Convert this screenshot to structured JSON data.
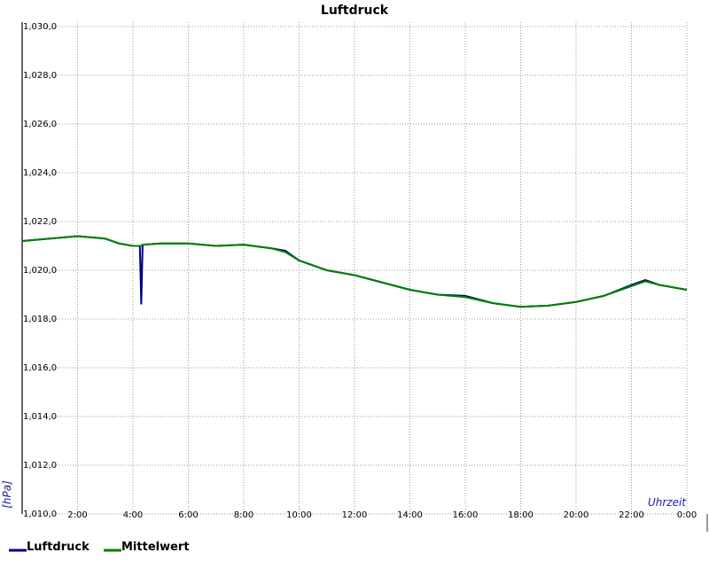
{
  "chart_data": {
    "type": "line",
    "title": "Luftdruck",
    "x_label": "Uhrzeit",
    "y_label": "[hPa]",
    "x": [
      0,
      1,
      2,
      3,
      3.5,
      4,
      4.25,
      4.3,
      4.35,
      5,
      6,
      7,
      8,
      9,
      9.5,
      10,
      11,
      12,
      13,
      14,
      15,
      16,
      17,
      18,
      19,
      20,
      21,
      22,
      22.5,
      23,
      24
    ],
    "series": [
      {
        "name": "Luftdruck",
        "color": "#000080",
        "values": [
          1021.2,
          1021.3,
          1021.4,
          1021.3,
          1021.1,
          1021.0,
          1021.0,
          1018.6,
          1021.05,
          1021.1,
          1021.1,
          1021.0,
          1021.05,
          1020.9,
          1020.8,
          1020.4,
          1020.0,
          1019.8,
          1019.5,
          1019.2,
          1019.0,
          1018.95,
          1018.65,
          1018.5,
          1018.55,
          1018.7,
          1018.95,
          1019.4,
          1019.6,
          1019.4,
          1019.2
        ]
      },
      {
        "name": "Mittelwert",
        "color": "#008000",
        "values": [
          1021.2,
          1021.3,
          1021.4,
          1021.3,
          1021.1,
          1021.0,
          1021.0,
          1021.0,
          1021.05,
          1021.1,
          1021.1,
          1021.0,
          1021.05,
          1020.9,
          1020.75,
          1020.4,
          1020.0,
          1019.8,
          1019.5,
          1019.2,
          1019.0,
          1018.9,
          1018.65,
          1018.5,
          1018.55,
          1018.7,
          1018.95,
          1019.35,
          1019.55,
          1019.4,
          1019.2
        ]
      }
    ],
    "xlim": [
      0,
      24
    ],
    "xticks": [
      {
        "value": 2,
        "label": "2:00"
      },
      {
        "value": 4,
        "label": "4:00"
      },
      {
        "value": 6,
        "label": "6:00"
      },
      {
        "value": 8,
        "label": "8:00"
      },
      {
        "value": 10,
        "label": "10:00"
      },
      {
        "value": 12,
        "label": "12:00"
      },
      {
        "value": 14,
        "label": "14:00"
      },
      {
        "value": 16,
        "label": "16:00"
      },
      {
        "value": 18,
        "label": "18:00"
      },
      {
        "value": 20,
        "label": "20:00"
      },
      {
        "value": 22,
        "label": "22:00"
      },
      {
        "value": 24,
        "label": "0:00"
      }
    ],
    "ylim": [
      1010,
      1030
    ],
    "yticks": [
      {
        "value": 1010,
        "label": "1,010,0"
      },
      {
        "value": 1012,
        "label": "1,012,0"
      },
      {
        "value": 1014,
        "label": "1,014,0"
      },
      {
        "value": 1016,
        "label": "1,016,0"
      },
      {
        "value": 1018,
        "label": "1,018,0"
      },
      {
        "value": 1020,
        "label": "1,020,0"
      },
      {
        "value": 1022,
        "label": "1,022,0"
      },
      {
        "value": 1024,
        "label": "1,024,0"
      },
      {
        "value": 1026,
        "label": "1,026,0"
      },
      {
        "value": 1028,
        "label": "1,028,0"
      },
      {
        "value": 1030,
        "label": "1,030,0"
      }
    ],
    "grid": true,
    "legend": "bottom-left"
  }
}
